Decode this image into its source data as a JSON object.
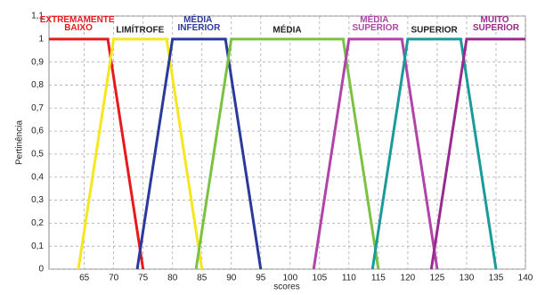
{
  "chart_data": {
    "type": "line",
    "y_label": "Pertinência",
    "x_label": "scores",
    "xlim": [
      59,
      140
    ],
    "xticks": [
      65,
      70,
      75,
      80,
      85,
      90,
      95,
      100,
      105,
      110,
      115,
      120,
      125,
      130,
      135,
      140
    ],
    "ylim": [
      0,
      1.1
    ],
    "yticks": [
      0,
      {
        "value": 0.1,
        "label": "0,1"
      },
      {
        "value": 0.2,
        "label": "0,2"
      },
      {
        "value": 0.3,
        "label": "0,3"
      },
      {
        "value": 0.4,
        "label": "0,4"
      },
      {
        "value": 0.5,
        "label": "0,5"
      },
      {
        "value": 0.6,
        "label": "0,6"
      },
      {
        "value": 0.7,
        "label": "0,7"
      },
      {
        "value": 0.8,
        "label": "0,8"
      },
      {
        "value": 0.9,
        "label": "0,9"
      },
      1,
      {
        "value": 1.1,
        "label": "1,1"
      }
    ],
    "grid": true,
    "series": [
      {
        "name": "EXTREMAMENTE BAIXO",
        "color": "#e8191c",
        "x": [
          59,
          69,
          75
        ],
        "values": [
          1,
          1,
          0
        ]
      },
      {
        "name": "LIMÍTROFE",
        "color": "#f5e61e",
        "x": [
          64,
          70,
          79,
          85
        ],
        "values": [
          0,
          1,
          1,
          0
        ]
      },
      {
        "name": "MÉDIA INFERIOR",
        "color": "#2b3a9a",
        "x": [
          74,
          80,
          89,
          95
        ],
        "values": [
          0,
          1,
          1,
          0
        ]
      },
      {
        "name": "MÉDIA",
        "color": "#7cc242",
        "x": [
          84,
          90,
          109,
          115
        ],
        "values": [
          0,
          1,
          1,
          0
        ]
      },
      {
        "name": "MÉDIA SUPERIOR",
        "color": "#b044a8",
        "x": [
          104,
          110,
          119,
          125
        ],
        "values": [
          0,
          1,
          1,
          0
        ]
      },
      {
        "name": "SUPERIOR",
        "color": "#1a9a9a",
        "x": [
          114,
          120,
          129,
          135
        ],
        "values": [
          0,
          1,
          1,
          0
        ]
      },
      {
        "name": "MUITO SUPERIOR",
        "color": "#9a2a8e",
        "x": [
          124,
          130,
          140
        ],
        "values": [
          0,
          1,
          1
        ]
      }
    ]
  }
}
